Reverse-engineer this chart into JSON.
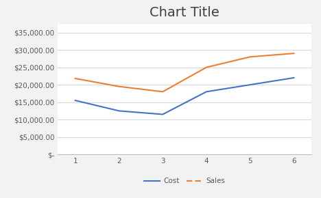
{
  "title": "Chart Title",
  "x": [
    1,
    2,
    3,
    4,
    5,
    6
  ],
  "cost": [
    15500,
    12500,
    11500,
    18000,
    20000,
    22000
  ],
  "sales": [
    21800,
    19500,
    18000,
    25000,
    28000,
    29000
  ],
  "cost_color": "#4472c4",
  "sales_color": "#ed7d31",
  "bg_color": "#f2f2f2",
  "plot_bg_color": "#ffffff",
  "ylim": [
    0,
    37500
  ],
  "yticks": [
    0,
    5000,
    10000,
    15000,
    20000,
    25000,
    30000,
    35000
  ],
  "ytick_labels": [
    "$-",
    "$5,000.00",
    "$10,000.00",
    "$15,000.00",
    "$20,000.00",
    "$25,000.00",
    "$30,000.00",
    "$35,000.00"
  ],
  "title_fontsize": 14,
  "tick_fontsize": 7.5,
  "legend_labels": [
    "Cost",
    "Sales"
  ]
}
